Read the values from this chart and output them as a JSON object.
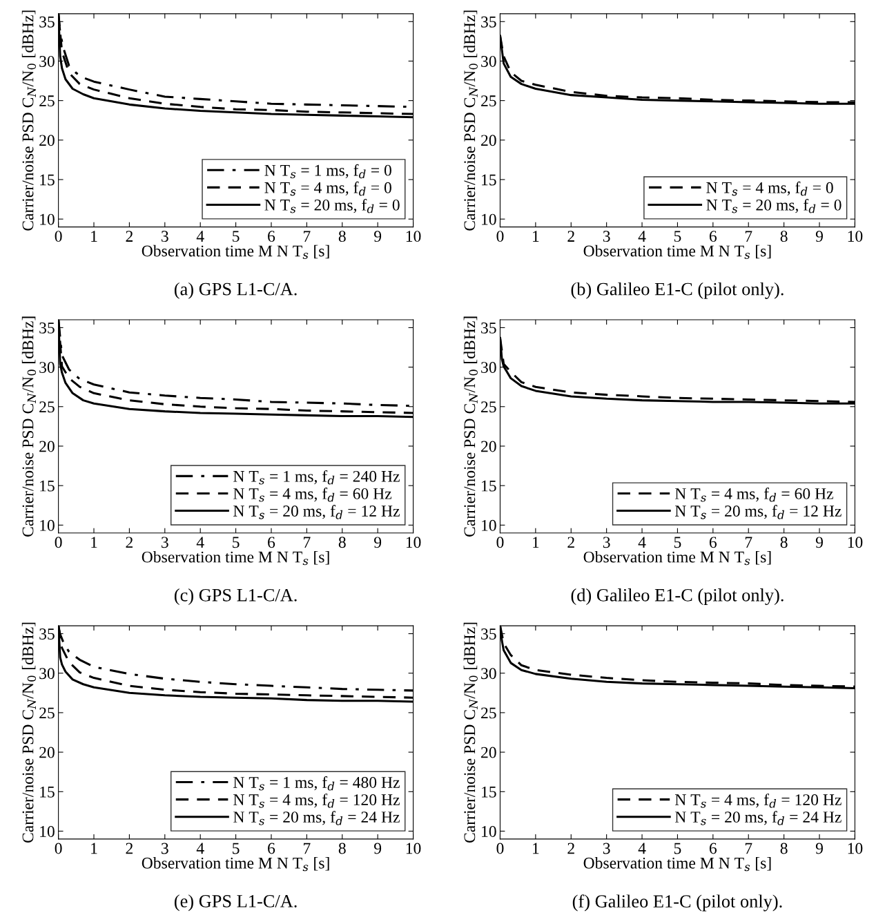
{
  "chart_data": [
    {
      "type": "line",
      "title": "(a) GPS L1-C/A.",
      "xlabel": "Observation time M N T$_{s}$ [s]",
      "ylabel": "Carrier/noise PSD C$_{N}$/N$_{0}$ [dBHz]",
      "xlim": [
        0,
        10
      ],
      "ylim": [
        9,
        36
      ],
      "xticks": [
        0,
        1,
        2,
        3,
        4,
        5,
        6,
        7,
        8,
        9,
        10
      ],
      "yticks": [
        10,
        15,
        20,
        25,
        30,
        35
      ],
      "legend": "bottom right",
      "grid": false,
      "series": [
        {
          "name": "N T$_{s}$ = 1 ms, f$_{d}$ = 0",
          "color": "#000000",
          "line_style": "dashdot",
          "x": [
            0,
            0.05,
            0.15,
            0.3,
            0.5,
            0.7,
            1,
            2,
            3,
            4,
            5,
            6,
            7,
            8,
            9,
            10
          ],
          "values": [
            36,
            33.5,
            31.5,
            29.4,
            28.5,
            27.9,
            27.4,
            26.4,
            25.5,
            25.2,
            24.9,
            24.6,
            24.5,
            24.4,
            24.3,
            24.2
          ]
        },
        {
          "name": "N T$_{s}$ = 4 ms, f$_{d}$ = 0",
          "color": "#000000",
          "line_style": "dashed",
          "x": [
            0,
            0.1,
            0.3,
            0.6,
            1,
            2,
            3,
            4,
            5,
            6,
            7,
            8,
            9,
            10
          ],
          "values": [
            36,
            31.2,
            28.5,
            27.1,
            26.4,
            25.3,
            24.6,
            24.2,
            23.9,
            23.8,
            23.6,
            23.5,
            23.4,
            23.3
          ]
        },
        {
          "name": "N T$_{s}$ = 20 ms, f$_{d}$ = 0",
          "color": "#000000",
          "line_style": "solid",
          "x": [
            0,
            0.05,
            0.1,
            0.2,
            0.4,
            0.7,
            1,
            2,
            3,
            4,
            5,
            6,
            7,
            8,
            9,
            10
          ],
          "values": [
            36,
            30.6,
            29.1,
            27.7,
            26.5,
            25.8,
            25.3,
            24.5,
            24.0,
            23.7,
            23.5,
            23.3,
            23.2,
            23.1,
            23.0,
            22.9
          ]
        }
      ]
    },
    {
      "type": "line",
      "title": "(b) Galileo E1-C (pilot only).",
      "xlabel": "Observation time M N T$_{s}$ [s]",
      "ylabel": "Carrier/noise PSD C$_{N}$/N$_{0}$ [dBHz]",
      "xlim": [
        0,
        10
      ],
      "ylim": [
        9,
        36
      ],
      "xticks": [
        0,
        1,
        2,
        3,
        4,
        5,
        6,
        7,
        8,
        9,
        10
      ],
      "yticks": [
        10,
        15,
        20,
        25,
        30,
        35
      ],
      "legend": "bottom right",
      "grid": false,
      "series": [
        {
          "name": "N T$_{s}$ = 4 ms, f$_{d}$ = 0",
          "color": "#000000",
          "line_style": "dashed",
          "x": [
            0,
            0.1,
            0.3,
            0.6,
            1,
            2,
            3,
            4,
            5,
            6,
            7,
            8,
            9,
            10
          ],
          "values": [
            33.2,
            30.6,
            28.6,
            27.5,
            27.0,
            26.1,
            25.6,
            25.4,
            25.3,
            25.1,
            25.0,
            24.9,
            24.8,
            24.8
          ]
        },
        {
          "name": "N T$_{s}$ = 20 ms, f$_{d}$ = 0",
          "color": "#000000",
          "line_style": "solid",
          "x": [
            0,
            0.1,
            0.3,
            0.6,
            1,
            2,
            3,
            4,
            5,
            6,
            7,
            8,
            9,
            10
          ],
          "values": [
            33.2,
            29.7,
            28.0,
            27.1,
            26.5,
            25.7,
            25.4,
            25.1,
            25.0,
            24.9,
            24.8,
            24.7,
            24.6,
            24.6
          ]
        }
      ]
    },
    {
      "type": "line",
      "title": "(c) GPS L1-C/A.",
      "xlabel": "Observation time M N T$_{s}$ [s]",
      "ylabel": "Carrier/noise PSD C$_{N}$/N$_{0}$ [dBHz]",
      "xlim": [
        0,
        10
      ],
      "ylim": [
        9,
        36
      ],
      "xticks": [
        0,
        1,
        2,
        3,
        4,
        5,
        6,
        7,
        8,
        9,
        10
      ],
      "yticks": [
        10,
        15,
        20,
        25,
        30,
        35
      ],
      "legend": "bottom right",
      "grid": false,
      "series": [
        {
          "name": "N T$_{s}$ = 1 ms, f$_{d}$ = 240 Hz",
          "color": "#000000",
          "line_style": "dashdot",
          "x": [
            0,
            0.1,
            0.3,
            0.6,
            1,
            2,
            3,
            4,
            5,
            6,
            7,
            8,
            9,
            10
          ],
          "values": [
            36,
            31.5,
            29.7,
            28.5,
            27.8,
            26.8,
            26.4,
            26.1,
            25.9,
            25.6,
            25.5,
            25.4,
            25.2,
            25.1
          ]
        },
        {
          "name": "N T$_{s}$ = 4 ms, f$_{d}$ = 60 Hz",
          "color": "#000000",
          "line_style": "dashed",
          "x": [
            0,
            0.1,
            0.3,
            0.6,
            1,
            2,
            3,
            4,
            5,
            6,
            7,
            8,
            9,
            10
          ],
          "values": [
            36,
            30.1,
            28.6,
            27.5,
            26.7,
            25.8,
            25.3,
            25.0,
            24.8,
            24.7,
            24.5,
            24.4,
            24.3,
            24.2
          ]
        },
        {
          "name": "N T$_{s}$ = 20 ms, f$_{d}$ = 12 Hz",
          "color": "#000000",
          "line_style": "solid",
          "x": [
            0,
            0.05,
            0.1,
            0.2,
            0.4,
            0.7,
            1,
            2,
            3,
            4,
            5,
            6,
            7,
            8,
            9,
            10
          ],
          "values": [
            36,
            30.4,
            29.3,
            28.0,
            26.7,
            25.8,
            25.4,
            24.7,
            24.4,
            24.2,
            24.1,
            24.0,
            23.9,
            23.8,
            23.8,
            23.7
          ]
        }
      ]
    },
    {
      "type": "line",
      "title": "(d) Galileo E1-C (pilot only).",
      "xlabel": "Observation time M N T$_{s}$ [s]",
      "ylabel": "Carrier/noise PSD C$_{N}$/N$_{0}$ [dBHz]",
      "xlim": [
        0,
        10
      ],
      "ylim": [
        9,
        36
      ],
      "xticks": [
        0,
        1,
        2,
        3,
        4,
        5,
        6,
        7,
        8,
        9,
        10
      ],
      "yticks": [
        10,
        15,
        20,
        25,
        30,
        35
      ],
      "legend": "bottom right",
      "grid": false,
      "series": [
        {
          "name": "N T$_{s}$ = 4 ms, f$_{d}$ = 60 Hz",
          "color": "#000000",
          "line_style": "dashed",
          "x": [
            0,
            0.1,
            0.3,
            0.6,
            1,
            2,
            3,
            4,
            5,
            6,
            7,
            8,
            9,
            10
          ],
          "values": [
            33.7,
            30.4,
            29.4,
            28.1,
            27.5,
            26.8,
            26.5,
            26.3,
            26.1,
            26.0,
            25.9,
            25.8,
            25.7,
            25.6
          ]
        },
        {
          "name": "N T$_{s}$ = 20 ms, f$_{d}$ = 12 Hz",
          "color": "#000000",
          "line_style": "solid",
          "x": [
            0,
            0.05,
            0.1,
            0.3,
            0.6,
            1,
            2,
            3,
            4,
            5,
            6,
            7,
            8,
            9,
            10
          ],
          "values": [
            33.7,
            31.0,
            30.1,
            28.6,
            27.6,
            27.0,
            26.3,
            26.0,
            25.8,
            25.7,
            25.6,
            25.6,
            25.5,
            25.4,
            25.4
          ]
        }
      ]
    },
    {
      "type": "line",
      "title": "(e) GPS L1-C/A.",
      "xlabel": "Observation time M N T$_{s}$ [s]",
      "ylabel": "Carrier/noise PSD C$_{N}$/N$_{0}$ [dBHz]",
      "xlim": [
        0,
        10
      ],
      "ylim": [
        9,
        36
      ],
      "xticks": [
        0,
        1,
        2,
        3,
        4,
        5,
        6,
        7,
        8,
        9,
        10
      ],
      "yticks": [
        10,
        15,
        20,
        25,
        30,
        35
      ],
      "legend": "bottom right",
      "grid": false,
      "series": [
        {
          "name": "N T$_{s}$ = 1 ms, f$_{d}$ = 480 Hz",
          "color": "#000000",
          "line_style": "dashdot",
          "x": [
            0,
            0.05,
            0.15,
            0.3,
            0.6,
            1,
            2,
            3,
            4,
            5,
            6,
            7,
            8,
            9,
            10
          ],
          "values": [
            36,
            34.9,
            33.8,
            32.7,
            31.7,
            30.8,
            29.9,
            29.3,
            28.9,
            28.6,
            28.4,
            28.2,
            28.0,
            27.9,
            27.8
          ]
        },
        {
          "name": "N T$_{s}$ = 4 ms, f$_{d}$ = 120 Hz",
          "color": "#000000",
          "line_style": "dashed",
          "x": [
            0,
            0.1,
            0.3,
            0.6,
            1,
            2,
            3,
            4,
            5,
            6,
            7,
            8,
            9,
            10
          ],
          "values": [
            36,
            33.2,
            31.4,
            30.1,
            29.4,
            28.4,
            27.9,
            27.6,
            27.4,
            27.3,
            27.2,
            27.1,
            27.0,
            26.9
          ]
        },
        {
          "name": "N T$_{s}$ = 20 ms, f$_{d}$ = 24 Hz",
          "color": "#000000",
          "line_style": "solid",
          "x": [
            0,
            0.05,
            0.1,
            0.2,
            0.4,
            0.7,
            1,
            2,
            3,
            4,
            5,
            6,
            7,
            8,
            9,
            10
          ],
          "values": [
            36,
            32.0,
            31.1,
            30.2,
            29.2,
            28.6,
            28.2,
            27.5,
            27.2,
            27.0,
            26.9,
            26.8,
            26.6,
            26.5,
            26.5,
            26.4
          ]
        }
      ]
    },
    {
      "type": "line",
      "title": "(f) Galileo E1-C (pilot only).",
      "xlabel": "Observation time M N T$_{s}$ [s]",
      "ylabel": "Carrier/noise PSD C$_{N}$/N$_{0}$ [dBHz]",
      "xlim": [
        0,
        10
      ],
      "ylim": [
        9,
        36
      ],
      "xticks": [
        0,
        1,
        2,
        3,
        4,
        5,
        6,
        7,
        8,
        9,
        10
      ],
      "yticks": [
        10,
        15,
        20,
        25,
        30,
        35
      ],
      "legend": "bottom right",
      "grid": false,
      "series": [
        {
          "name": "N T$_{s}$ = 4 ms, f$_{d}$ = 120 Hz",
          "color": "#000000",
          "line_style": "dashed",
          "x": [
            0,
            0.1,
            0.3,
            0.6,
            1,
            2,
            3,
            4,
            5,
            6,
            7,
            8,
            9,
            10
          ],
          "values": [
            36,
            33.8,
            32.3,
            31.0,
            30.4,
            29.8,
            29.4,
            29.1,
            28.9,
            28.8,
            28.7,
            28.5,
            28.4,
            28.3
          ]
        },
        {
          "name": "N T$_{s}$ = 20 ms, f$_{d}$ = 24 Hz",
          "color": "#000000",
          "line_style": "solid",
          "x": [
            0,
            0.05,
            0.1,
            0.3,
            0.6,
            1,
            2,
            3,
            4,
            5,
            6,
            7,
            8,
            9,
            10
          ],
          "values": [
            36,
            34.1,
            32.9,
            31.3,
            30.4,
            29.9,
            29.3,
            28.9,
            28.7,
            28.6,
            28.5,
            28.4,
            28.3,
            28.2,
            28.1
          ]
        }
      ]
    }
  ]
}
